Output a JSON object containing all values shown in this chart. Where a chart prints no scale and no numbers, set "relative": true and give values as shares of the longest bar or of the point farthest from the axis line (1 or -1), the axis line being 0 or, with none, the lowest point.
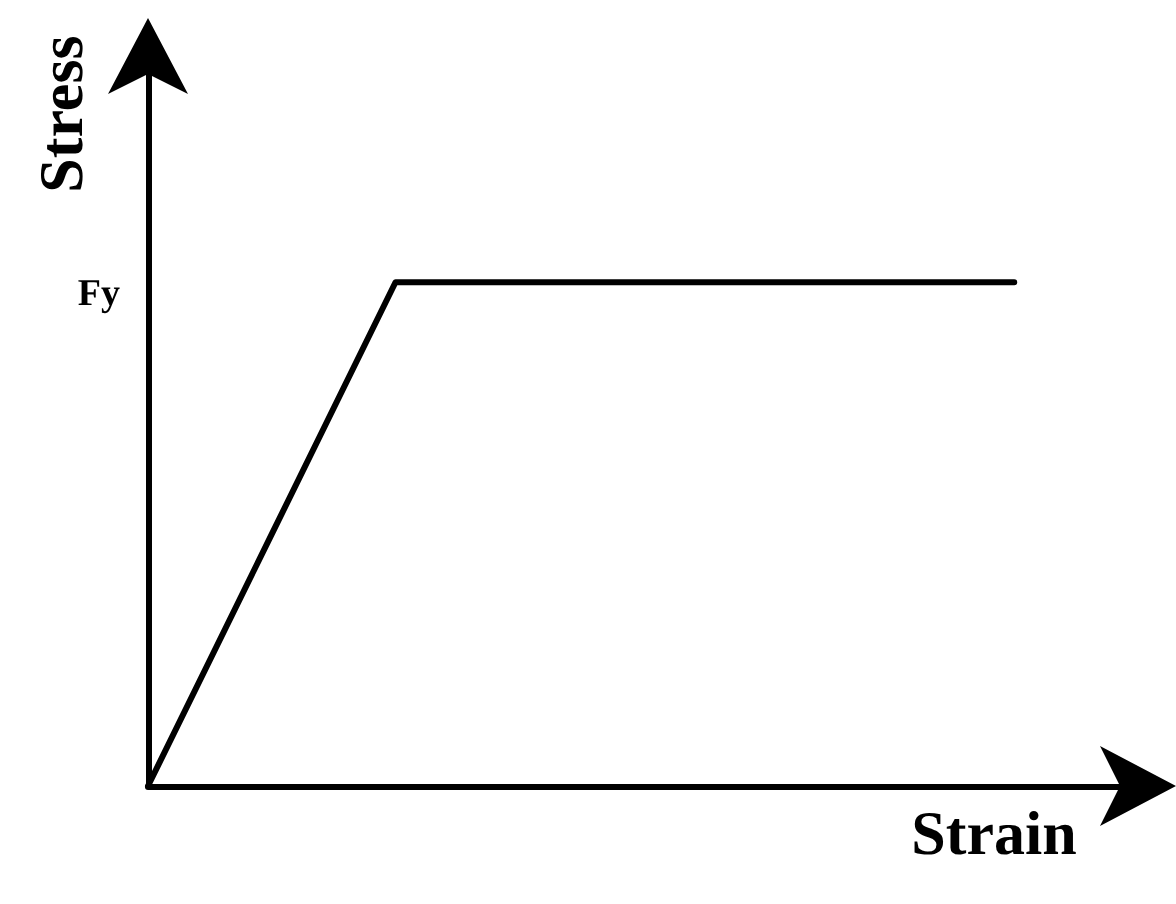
{
  "chart_data": {
    "type": "line",
    "xlabel": "Strain",
    "ylabel": "Stress",
    "relative": true,
    "categories": [
      null,
      null,
      null,
      null,
      null,
      null,
      null,
      null,
      null
    ],
    "values": [
      0,
      0.5,
      1,
      1,
      1,
      1,
      1,
      1,
      null
    ],
    "color": "#000000",
    "annotations": [
      "Fy"
    ]
  }
}
